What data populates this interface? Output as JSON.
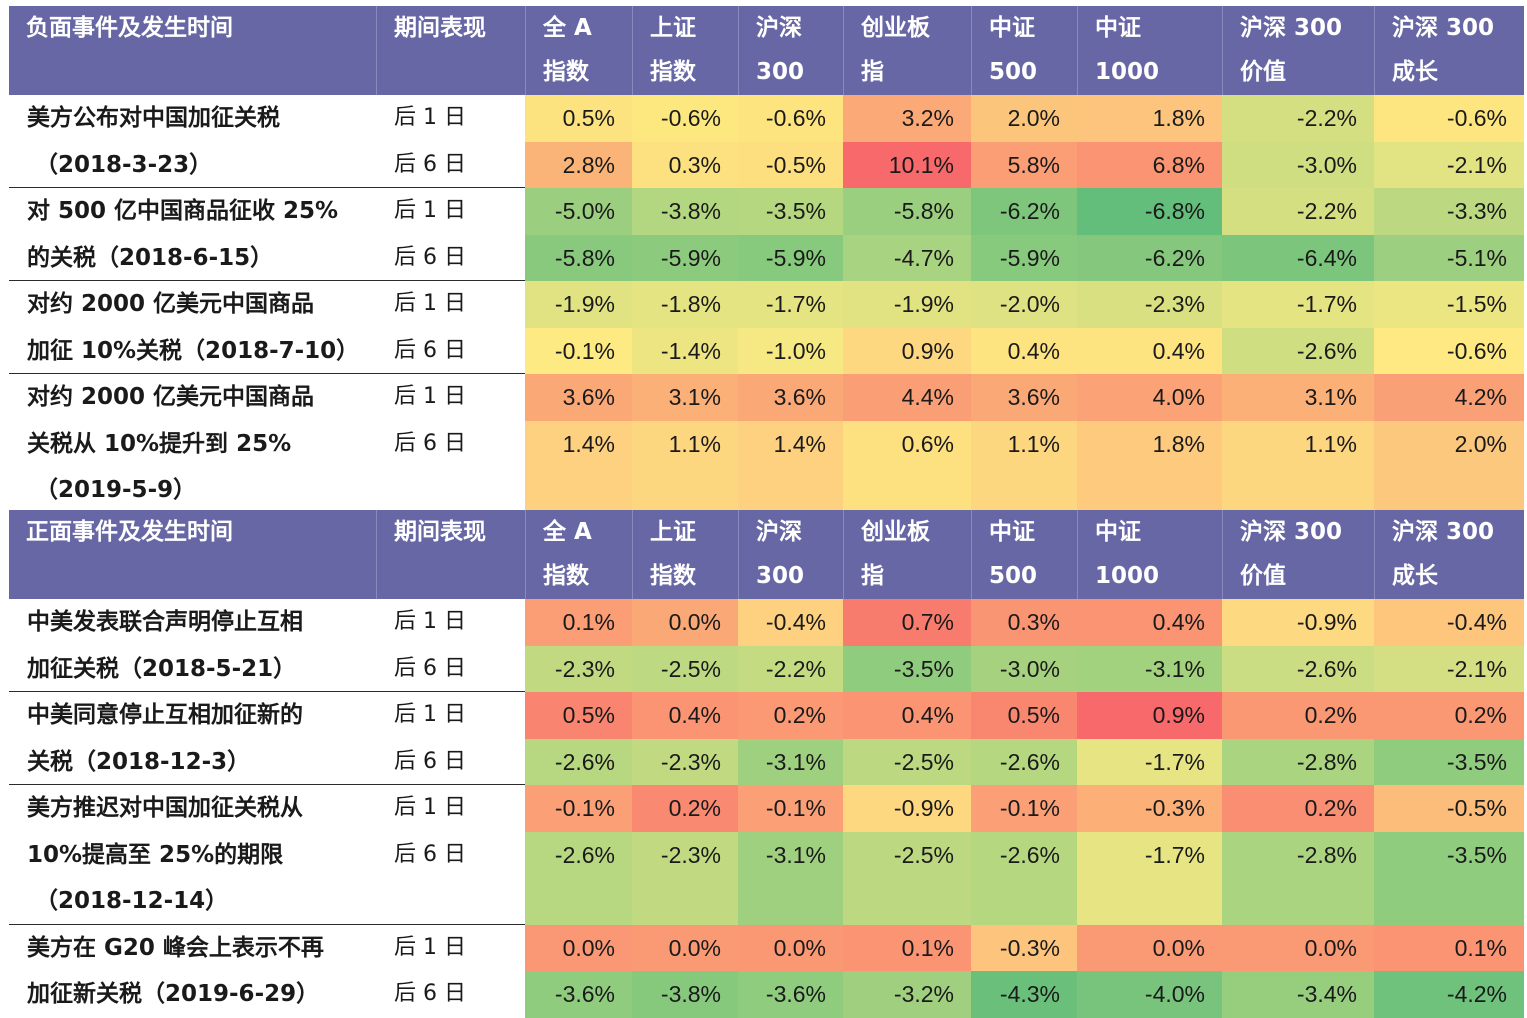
{
  "columns": [
    "全 A 指数",
    "上证 指数",
    "沪深 300",
    "创业板 指",
    "中证 500",
    "中证 1000",
    "沪深 300 价值",
    "沪深 300 成长"
  ],
  "sections": [
    {
      "header": {
        "event": "负面事件及发生时间",
        "period": "期间表现",
        "columns": [
          [
            "全 A",
            "指数"
          ],
          [
            "上证",
            "指数"
          ],
          [
            "沪深",
            "300"
          ],
          [
            "创业板",
            "指"
          ],
          [
            "中证",
            "500"
          ],
          [
            "中证",
            "1000"
          ],
          [
            "沪深 300",
            "价值"
          ],
          [
            "沪深 300",
            "成长"
          ]
        ]
      },
      "events": [
        {
          "lines": [
            "美方公布对中国加征关税",
            "（2018-3-23）"
          ],
          "rows": [
            {
              "period": "后 1 日",
              "values": [
                "0.5%",
                "-0.6%",
                "-0.6%",
                "3.2%",
                "2.0%",
                "1.8%",
                "-2.2%",
                "-0.6%"
              ],
              "colors": [
                "#fde280",
                "#fde880",
                "#fde47f",
                "#fbaa77",
                "#fcc57c",
                "#fcc47c",
                "#d4df81",
                "#fde680"
              ]
            },
            {
              "period": "后 6 日",
              "values": [
                "2.8%",
                "0.3%",
                "-0.5%",
                "10.1%",
                "5.8%",
                "6.8%",
                "-3.0%",
                "-2.1%"
              ],
              "colors": [
                "#fbb478",
                "#fde080",
                "#fddf80",
                "#f8696b",
                "#fb9d75",
                "#fb9473",
                "#d0de82",
                "#e2e383"
              ]
            }
          ]
        },
        {
          "lines": [
            "对 500 亿中国商品征收 25%",
            "的关税（2018-6-15）"
          ],
          "rows": [
            {
              "period": "后 1 日",
              "values": [
                "-5.0%",
                "-3.8%",
                "-3.5%",
                "-5.8%",
                "-6.2%",
                "-6.8%",
                "-2.2%",
                "-3.3%"
              ],
              "colors": [
                "#9bcf7f",
                "#b3d680",
                "#b4d780",
                "#9acf7f",
                "#7dc67c",
                "#63be7b",
                "#d4df81",
                "#bcd981"
              ]
            },
            {
              "period": "后 6 日",
              "values": [
                "-5.8%",
                "-5.9%",
                "-5.9%",
                "-4.7%",
                "-5.9%",
                "-6.2%",
                "-6.4%",
                "-5.1%"
              ],
              "colors": [
                "#88c97d",
                "#8ccb7e",
                "#87c97d",
                "#a8d380",
                "#87c97d",
                "#85c87d",
                "#7cc57c",
                "#9ccf7f"
              ]
            }
          ]
        },
        {
          "lines": [
            "对约 2000 亿美元中国商品",
            "加征 10%关税（2018-7-10）"
          ],
          "rows": [
            {
              "period": "后 1 日",
              "values": [
                "-1.9%",
                "-1.8%",
                "-1.7%",
                "-1.9%",
                "-2.0%",
                "-2.3%",
                "-1.7%",
                "-1.5%"
              ],
              "colors": [
                "#e1e383",
                "#e4e483",
                "#e5e483",
                "#e1e383",
                "#dfe283",
                "#d8e082",
                "#e5e483",
                "#ebe582"
              ]
            },
            {
              "period": "后 6 日",
              "values": [
                "-0.1%",
                "-1.4%",
                "-1.0%",
                "0.9%",
                "0.4%",
                "0.4%",
                "-2.6%",
                "-0.6%"
              ],
              "colors": [
                "#feea83",
                "#ece582",
                "#f6e883",
                "#fed880",
                "#fee381",
                "#fee381",
                "#d0de82",
                "#fee983"
              ]
            }
          ]
        },
        {
          "lines": [
            "对约 2000 亿美元中国商品",
            "关税从 10%提升到 25%",
            "（2019-5-9）"
          ],
          "rows": [
            {
              "period": "后 1 日",
              "values": [
                "3.6%",
                "3.1%",
                "3.6%",
                "4.4%",
                "3.6%",
                "4.0%",
                "3.1%",
                "4.2%"
              ],
              "colors": [
                "#fba877",
                "#fbb078",
                "#fba877",
                "#fa9e76",
                "#fba877",
                "#fba376",
                "#fbb078",
                "#faa076"
              ]
            },
            {
              "period": "后 6 日",
              "values": [
                "1.4%",
                "1.1%",
                "1.4%",
                "0.6%",
                "1.1%",
                "1.8%",
                "1.1%",
                "2.0%"
              ],
              "colors": [
                "#fdd17f",
                "#fdd680",
                "#fdd17f",
                "#fde080",
                "#fdd680",
                "#fdca7e",
                "#fdd680",
                "#fcc87d"
              ]
            }
          ]
        }
      ]
    },
    {
      "header": {
        "event": "正面事件及发生时间",
        "period": "期间表现",
        "columns": [
          [
            "全 A",
            "指数"
          ],
          [
            "上证",
            "指数"
          ],
          [
            "沪深",
            "300"
          ],
          [
            "创业板",
            "指"
          ],
          [
            "中证",
            "500"
          ],
          [
            "中证",
            "1000"
          ],
          [
            "沪深 300",
            "价值"
          ],
          [
            "沪深 300",
            "成长"
          ]
        ]
      },
      "events": [
        {
          "lines": [
            "中美发表联合声明停止互相",
            "加征关税（2018-5-21）"
          ],
          "rows": [
            {
              "period": "后 1 日",
              "values": [
                "0.1%",
                "0.0%",
                "-0.4%",
                "0.7%",
                "0.3%",
                "0.4%",
                "-0.9%",
                "-0.4%"
              ],
              "colors": [
                "#fb9d75",
                "#fba877",
                "#fdd17f",
                "#f87c6e",
                "#fa9573",
                "#fa9473",
                "#fdd981",
                "#fec67c"
              ]
            },
            {
              "period": "后 6 日",
              "values": [
                "-2.3%",
                "-2.5%",
                "-2.2%",
                "-3.5%",
                "-3.0%",
                "-3.1%",
                "-2.6%",
                "-2.1%"
              ],
              "colors": [
                "#c1da81",
                "#bdd981",
                "#c4db81",
                "#8fcc7e",
                "#a6d27f",
                "#a3d27f",
                "#cbdd82",
                "#d3df82"
              ]
            }
          ]
        },
        {
          "lines": [
            "中美同意停止互相加征新的",
            "关税（2018-12-3）"
          ],
          "rows": [
            {
              "period": "后 1 日",
              "values": [
                "0.5%",
                "0.4%",
                "0.2%",
                "0.4%",
                "0.5%",
                "0.9%",
                "0.2%",
                "0.2%"
              ],
              "colors": [
                "#f98570",
                "#fa9473",
                "#fa9974",
                "#fb9473",
                "#f98770",
                "#f8696b",
                "#fa9874",
                "#fa9874"
              ]
            },
            {
              "period": "后 6 日",
              "values": [
                "-2.6%",
                "-2.3%",
                "-3.1%",
                "-2.5%",
                "-2.6%",
                "-1.7%",
                "-2.8%",
                "-3.5%"
              ],
              "colors": [
                "#b7d780",
                "#c1da81",
                "#9fd07f",
                "#bcd881",
                "#b5d780",
                "#e6e483",
                "#abd480",
                "#8fcc7e"
              ]
            }
          ]
        },
        {
          "lines": [
            "美方推迟对中国加征关税从",
            "10%提高至 25%的期限",
            "（2018-12-14）"
          ],
          "rows": [
            {
              "period": "后 1 日",
              "values": [
                "-0.1%",
                "0.2%",
                "-0.1%",
                "-0.9%",
                "-0.1%",
                "-0.3%",
                "0.2%",
                "-0.5%"
              ],
              "colors": [
                "#fba076",
                "#f98a71",
                "#fba076",
                "#fed880",
                "#fba076",
                "#fcb078",
                "#fa8e72",
                "#fcbd7b"
              ]
            },
            {
              "period": "后 6 日",
              "values": [
                "-2.6%",
                "-2.3%",
                "-3.1%",
                "-2.5%",
                "-2.6%",
                "-1.7%",
                "-2.8%",
                "-3.5%"
              ],
              "colors": [
                "#b7d780",
                "#c1da81",
                "#9fd07f",
                "#bcd881",
                "#b5d780",
                "#e6e483",
                "#abd480",
                "#8fcc7e"
              ]
            }
          ]
        },
        {
          "lines": [
            "美方在 G20 峰会上表示不再",
            "加征新关税（2019-6-29）"
          ],
          "rows": [
            {
              "period": "后 1 日",
              "values": [
                "0.0%",
                "0.0%",
                "0.0%",
                "0.1%",
                "-0.3%",
                "0.0%",
                "0.0%",
                "0.1%"
              ],
              "colors": [
                "#fa9774",
                "#fa9a74",
                "#fa9874",
                "#fa9472",
                "#fcc47c",
                "#fa9a74",
                "#fa9a74",
                "#fa9472"
              ]
            },
            {
              "period": "后 6 日",
              "values": [
                "-3.6%",
                "-3.8%",
                "-3.6%",
                "-3.2%",
                "-4.3%",
                "-4.0%",
                "-3.4%",
                "-4.2%"
              ],
              "colors": [
                "#8fcc7e",
                "#86c97d",
                "#8fcc7e",
                "#a0d07f",
                "#6ac07b",
                "#78c47c",
                "#97ce7e",
                "#6fc27c"
              ]
            }
          ]
        }
      ]
    }
  ]
}
